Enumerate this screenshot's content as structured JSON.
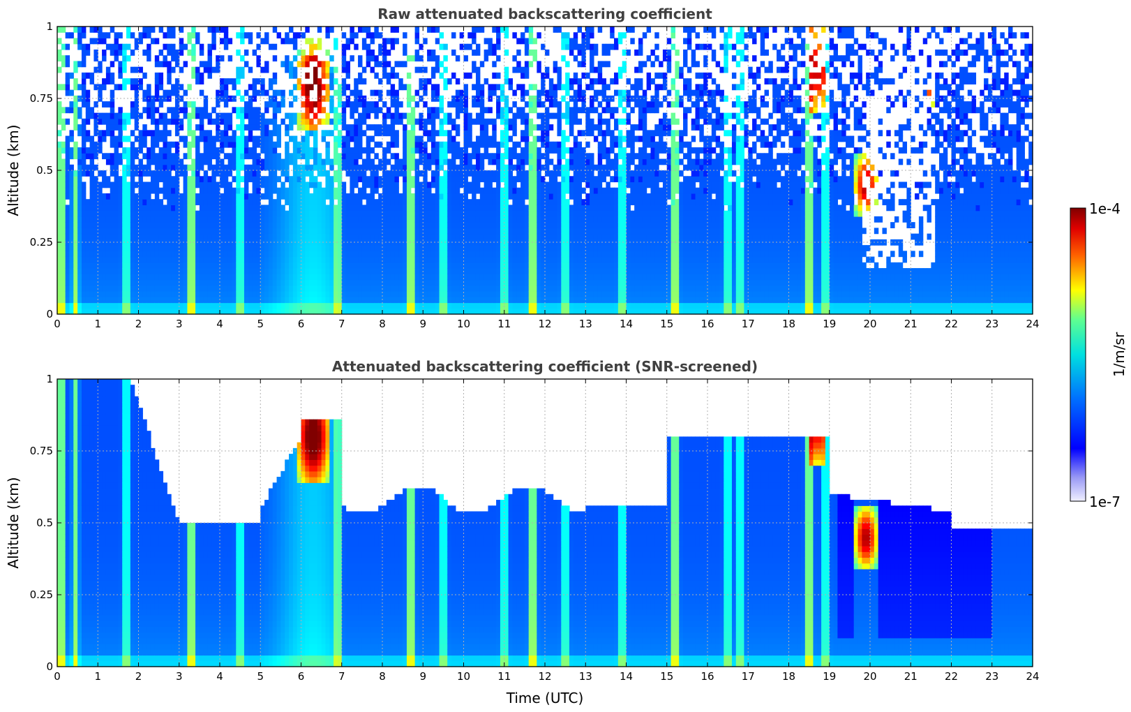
{
  "chart_data": [
    {
      "type": "heatmap",
      "title": "Raw attenuated backscattering coefficient",
      "xlabel": "",
      "ylabel": "Altitude (km)",
      "xlim": [
        0,
        24
      ],
      "ylim": [
        0,
        1
      ],
      "xticks": [
        "0",
        "1",
        "2",
        "3",
        "4",
        "5",
        "6",
        "7",
        "8",
        "9",
        "10",
        "11",
        "12",
        "13",
        "14",
        "15",
        "16",
        "17",
        "18",
        "19",
        "20",
        "21",
        "22",
        "23",
        "24"
      ],
      "yticks": [
        "0",
        "0.25",
        "0.5",
        "0.75",
        "1"
      ],
      "grid": true,
      "screened": false
    },
    {
      "type": "heatmap",
      "title": "Attenuated backscattering coefficient (SNR-screened)",
      "xlabel": "Time (UTC)",
      "ylabel": "Altitude (km)",
      "xlim": [
        0,
        24
      ],
      "ylim": [
        0,
        1
      ],
      "xticks": [
        "0",
        "1",
        "2",
        "3",
        "4",
        "5",
        "6",
        "7",
        "8",
        "9",
        "10",
        "11",
        "12",
        "13",
        "14",
        "15",
        "16",
        "17",
        "18",
        "19",
        "20",
        "21",
        "22",
        "23",
        "24"
      ],
      "yticks": [
        "0",
        "0.25",
        "0.5",
        "0.75",
        "1"
      ],
      "grid": true,
      "screened": true
    }
  ],
  "colorbar": {
    "label": "1/m/sr",
    "max_label": "1e-4",
    "min_label": "1e-7",
    "scale": "log",
    "colormap": "jet"
  },
  "features": {
    "vertical_plumes_utc": [
      0.1,
      0.45,
      1.7,
      3.3,
      4.5,
      6.9,
      8.7,
      9.5,
      11.0,
      11.7,
      12.5,
      13.9,
      15.2,
      16.5,
      16.8,
      18.5,
      18.9
    ],
    "dense_clouds": [
      {
        "t0": 5.9,
        "t1": 6.7,
        "z0": 0.65,
        "z1": 0.95
      },
      {
        "t0": 18.5,
        "t1": 18.9,
        "z0": 0.7,
        "z1": 1.0
      },
      {
        "t0": 19.6,
        "t1": 20.2,
        "z0": 0.35,
        "z1": 0.55
      },
      {
        "t0": 21.4,
        "t1": 21.6,
        "z0": 0.72,
        "z1": 0.8
      }
    ]
  }
}
